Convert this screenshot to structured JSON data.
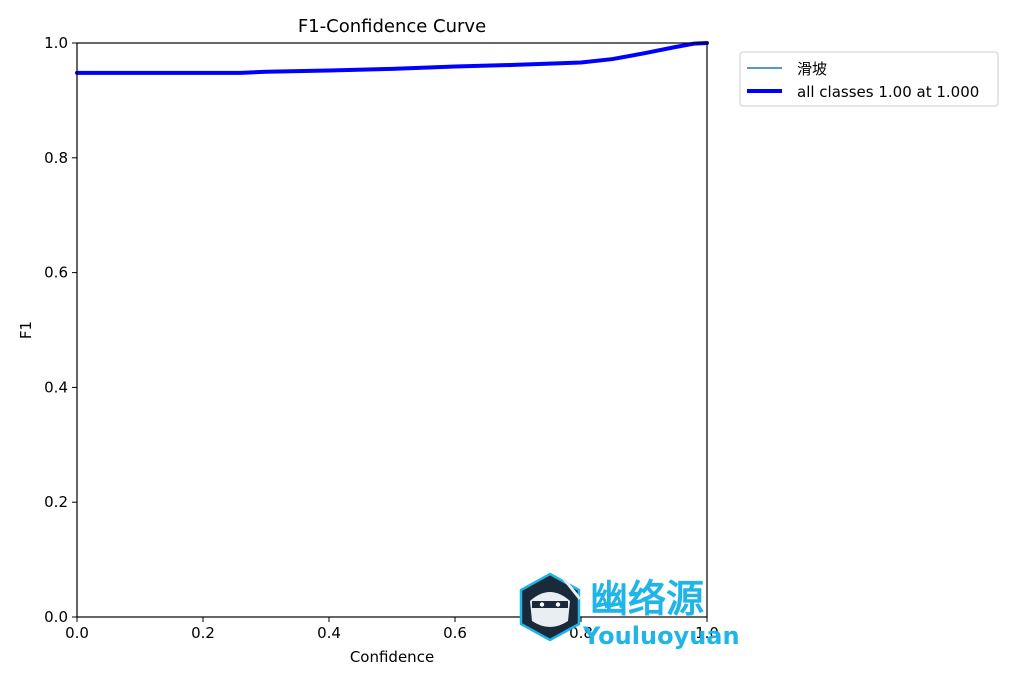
{
  "chart_data": {
    "type": "line",
    "title": "F1-Confidence Curve",
    "xlabel": "Confidence",
    "ylabel": "F1",
    "xlim": [
      0,
      1
    ],
    "ylim": [
      0,
      1
    ],
    "xticks": [
      "0.0",
      "0.2",
      "0.4",
      "0.6",
      "0.8",
      "1.0"
    ],
    "yticks": [
      "0.0",
      "0.2",
      "0.4",
      "0.6",
      "0.8",
      "1.0"
    ],
    "grid": false,
    "legend_position": "outside-top-right",
    "series": [
      {
        "name": "滑坡",
        "color": "#1f77b4",
        "x": [
          0.0,
          0.1,
          0.2,
          0.26,
          0.3,
          0.4,
          0.5,
          0.6,
          0.7,
          0.75,
          0.8,
          0.85,
          0.9,
          0.95,
          0.98,
          1.0
        ],
        "y": [
          0.948,
          0.948,
          0.948,
          0.948,
          0.95,
          0.952,
          0.955,
          0.959,
          0.962,
          0.964,
          0.966,
          0.972,
          0.982,
          0.993,
          0.999,
          1.0
        ]
      },
      {
        "name": "all classes 1.00 at 1.000",
        "color": "#0000ff",
        "x": [
          0.0,
          0.1,
          0.2,
          0.26,
          0.3,
          0.4,
          0.5,
          0.6,
          0.7,
          0.75,
          0.8,
          0.85,
          0.9,
          0.95,
          0.98,
          1.0
        ],
        "y": [
          0.948,
          0.948,
          0.948,
          0.948,
          0.95,
          0.952,
          0.955,
          0.959,
          0.962,
          0.964,
          0.966,
          0.972,
          0.982,
          0.993,
          0.999,
          1.0
        ]
      }
    ]
  },
  "watermark": {
    "text_cn": "幽络源",
    "text_en": "Youluoyuan",
    "color": "#1fb5e8",
    "icon": "ninja-mascot-icon"
  }
}
